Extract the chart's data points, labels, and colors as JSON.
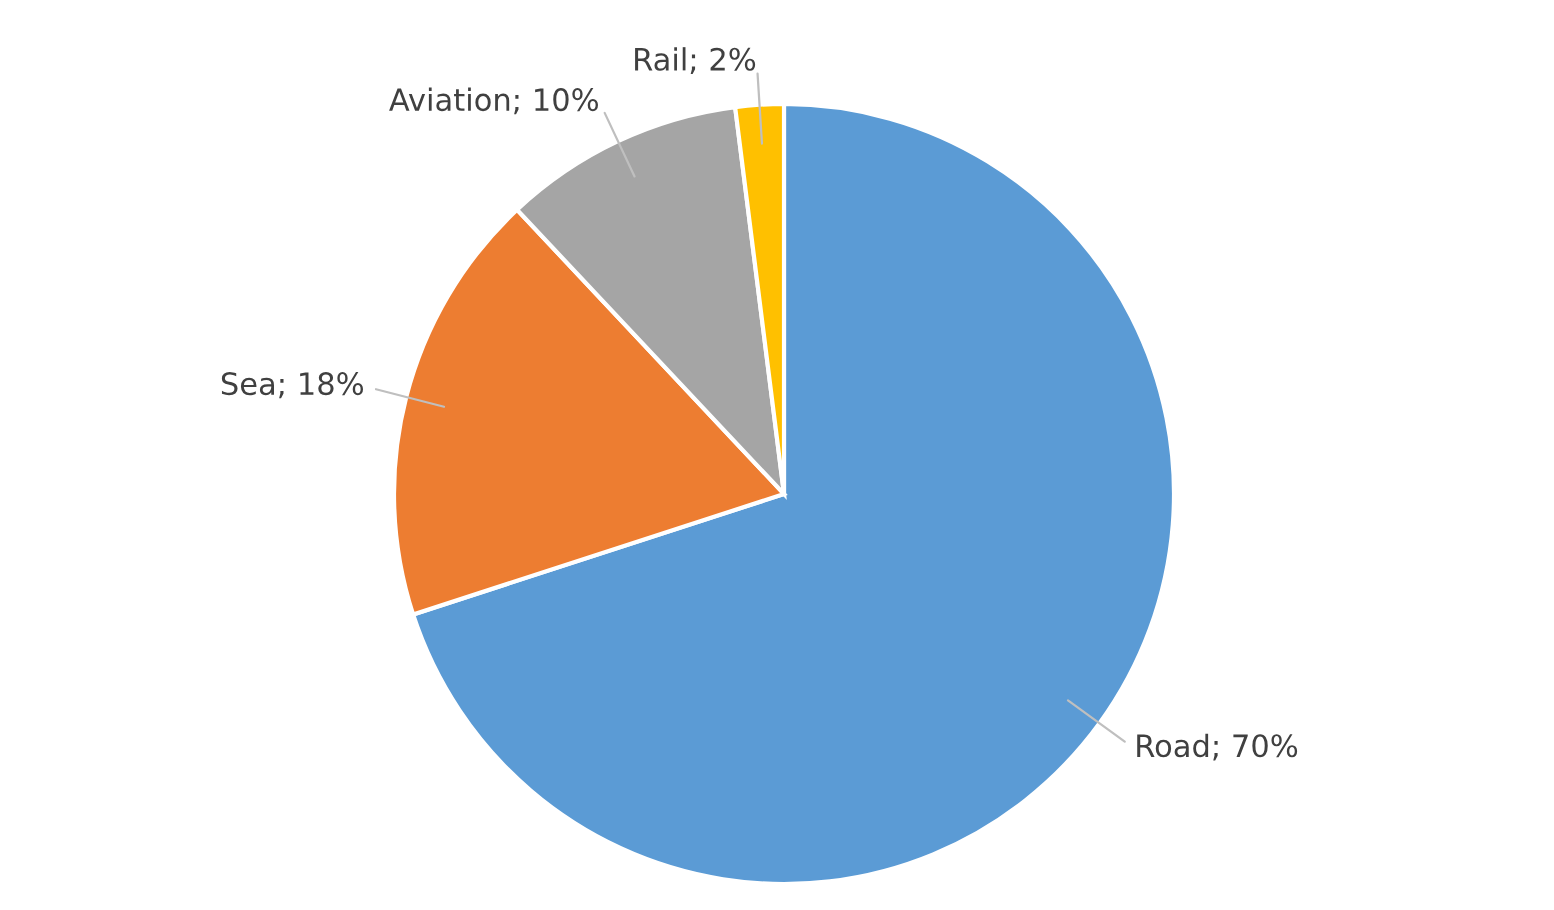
{
  "chart_data": {
    "type": "pie",
    "categories": [
      "Road",
      "Sea",
      "Aviation",
      "Rail"
    ],
    "values": [
      70,
      18,
      10,
      2
    ],
    "colors": [
      "#5b9bd5",
      "#ed7d31",
      "#a5a5a5",
      "#ffc000"
    ],
    "value_labels": [
      "70%",
      "18%",
      "10%",
      "2%"
    ]
  }
}
